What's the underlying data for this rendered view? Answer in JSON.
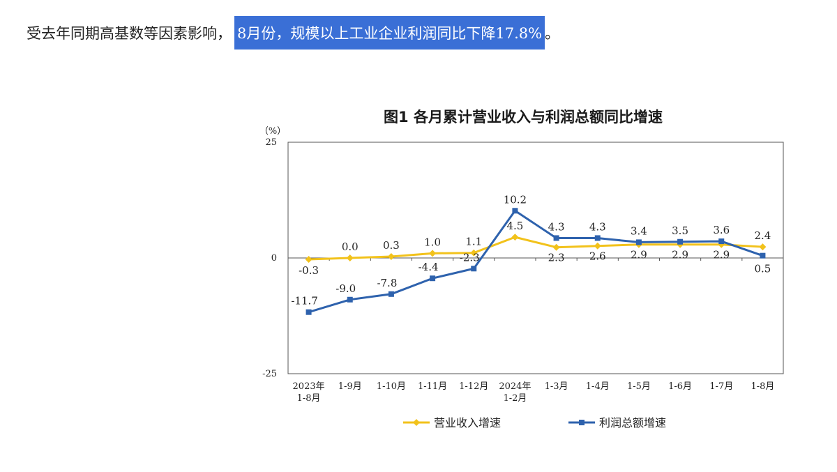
{
  "headline": {
    "lead": "受去年同期高基数等因素影响，",
    "highlight": "8月份，规模以上工业企业利润同比下降17.8%",
    "tail": "。"
  },
  "chart_data": {
    "type": "line",
    "title": "图1  各月累计营业收入与利润总额同比增速",
    "ylabel": "（%）",
    "ylim": [
      -25,
      25
    ],
    "yticks": [
      "25",
      "0",
      "-25"
    ],
    "categories": [
      [
        "2023年",
        "1-8月"
      ],
      [
        "1-9月"
      ],
      [
        "1-10月"
      ],
      [
        "1-11月"
      ],
      [
        "1-12月"
      ],
      [
        "2024年",
        "1-2月"
      ],
      [
        "1-3月"
      ],
      [
        "1-4月"
      ],
      [
        "1-5月"
      ],
      [
        "1-6月"
      ],
      [
        "1-7月"
      ],
      [
        "1-8月"
      ]
    ],
    "series": [
      {
        "name": "营业收入增速",
        "color": "#f2c21b",
        "marker": "diamond",
        "values": [
          -0.3,
          0.0,
          0.3,
          1.0,
          1.1,
          4.5,
          2.3,
          2.6,
          2.9,
          2.9,
          2.9,
          2.4
        ],
        "labels": [
          "-0.3",
          "0.0",
          "0.3",
          "1.0",
          "1.1",
          "4.5",
          "2.3",
          "2.6",
          "2.9",
          "2.9",
          "2.9",
          "2.4"
        ]
      },
      {
        "name": "利润总额增速",
        "color": "#2e62ad",
        "marker": "square",
        "values": [
          -11.7,
          -9.0,
          -7.8,
          -4.4,
          -2.3,
          10.2,
          4.3,
          4.3,
          3.4,
          3.5,
          3.6,
          0.5
        ],
        "labels": [
          "-11.7",
          "-9.0",
          "-7.8",
          "-4.4",
          "-2.3",
          "10.2",
          "4.3",
          "4.3",
          "3.4",
          "3.5",
          "3.6",
          "0.5"
        ]
      }
    ]
  }
}
